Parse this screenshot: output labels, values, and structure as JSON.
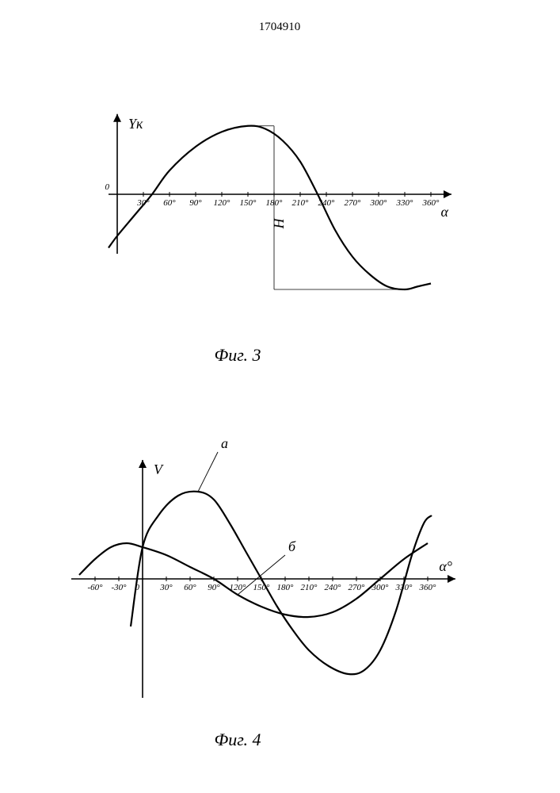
{
  "document_id": "1704910",
  "colors": {
    "background": "#ffffff",
    "stroke": "#000000",
    "thin_stroke": "#000000"
  },
  "fig3": {
    "caption": "Фиг. 3",
    "type": "line",
    "y_label": "Yк",
    "x_label": "α",
    "origin_label": "0",
    "x_ticks": [
      30,
      60,
      90,
      120,
      150,
      180,
      210,
      240,
      270,
      300,
      330,
      360
    ],
    "x_tick_labels": [
      "30°",
      "60°",
      "90°",
      "120°",
      "150°",
      "180°",
      "210°",
      "240°",
      "270°",
      "300°",
      "330°",
      "360°"
    ],
    "x_range_deg": [
      -10,
      370
    ],
    "amplitude_label": "H",
    "curve_points_deg_y": [
      [
        -10,
        -90
      ],
      [
        0,
        -70
      ],
      [
        20,
        -35
      ],
      [
        40,
        0
      ],
      [
        60,
        40
      ],
      [
        90,
        80
      ],
      [
        120,
        105
      ],
      [
        150,
        115
      ],
      [
        170,
        110
      ],
      [
        190,
        90
      ],
      [
        210,
        55
      ],
      [
        230,
        0
      ],
      [
        250,
        -60
      ],
      [
        270,
        -105
      ],
      [
        290,
        -135
      ],
      [
        310,
        -155
      ],
      [
        330,
        -160
      ],
      [
        345,
        -155
      ],
      [
        360,
        -150
      ]
    ],
    "stroke_width_curve": 2.2,
    "stroke_width_axis": 1.6,
    "stroke_width_thin": 0.8,
    "peak_x_deg": 150,
    "peak_y": 115,
    "trough_x_deg": 330,
    "trough_y": -160
  },
  "fig4": {
    "caption": "Фиг. 4",
    "type": "line",
    "y_label": "V",
    "x_label": "α°",
    "origin_label": "0",
    "x_ticks": [
      -60,
      -30,
      30,
      60,
      90,
      120,
      150,
      180,
      210,
      240,
      270,
      300,
      330,
      360
    ],
    "x_tick_labels": [
      "-60°",
      "-30°",
      "30°",
      "60°",
      "90°",
      "120°",
      "150°",
      "180°",
      "210°",
      "240°",
      "270°",
      "300°",
      "330°",
      "360°"
    ],
    "x_range_deg": [
      -80,
      380
    ],
    "series": [
      {
        "label": "а",
        "leader_at_deg": 75,
        "points_deg_y": [
          [
            -15,
            -60
          ],
          [
            0,
            40
          ],
          [
            20,
            80
          ],
          [
            45,
            105
          ],
          [
            70,
            110
          ],
          [
            90,
            100
          ],
          [
            110,
            70
          ],
          [
            130,
            35
          ],
          [
            150,
            0
          ],
          [
            170,
            -35
          ],
          [
            190,
            -65
          ],
          [
            210,
            -90
          ],
          [
            235,
            -110
          ],
          [
            260,
            -120
          ],
          [
            280,
            -115
          ],
          [
            300,
            -90
          ],
          [
            320,
            -40
          ],
          [
            340,
            30
          ],
          [
            355,
            70
          ],
          [
            365,
            80
          ]
        ]
      },
      {
        "label": "б",
        "leader_at_deg": 120,
        "points_deg_y": [
          [
            -80,
            5
          ],
          [
            -60,
            25
          ],
          [
            -40,
            40
          ],
          [
            -20,
            45
          ],
          [
            0,
            40
          ],
          [
            30,
            30
          ],
          [
            60,
            15
          ],
          [
            90,
            0
          ],
          [
            120,
            -20
          ],
          [
            150,
            -35
          ],
          [
            180,
            -45
          ],
          [
            210,
            -48
          ],
          [
            240,
            -42
          ],
          [
            270,
            -25
          ],
          [
            300,
            0
          ],
          [
            330,
            25
          ],
          [
            360,
            45
          ]
        ]
      }
    ],
    "stroke_width_curve": 2.2,
    "stroke_width_axis": 1.6
  }
}
